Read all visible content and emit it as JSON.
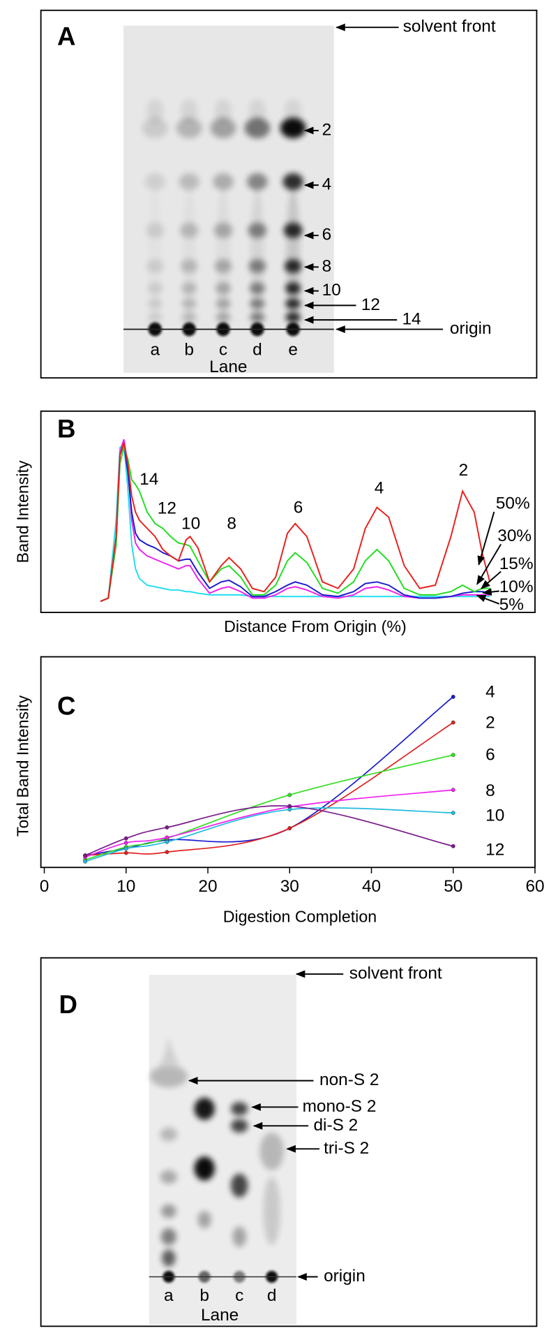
{
  "panel_a": {
    "label": "A",
    "lanes": [
      "a",
      "b",
      "c",
      "d",
      "e"
    ],
    "lane_axis": "Lane",
    "annotations": [
      "solvent front",
      "2",
      "4",
      "6",
      "8",
      "10",
      "12",
      "14",
      "origin"
    ]
  },
  "chart_data": [
    {
      "type": "line",
      "panel_label": "B",
      "xlabel": "Distance From Origin (%)",
      "ylabel": "Band Intensity",
      "peak_labels": [
        "14",
        "12",
        "10",
        "8",
        "6",
        "4",
        "2"
      ],
      "xlim": [
        0,
        100
      ],
      "ylim": [
        0,
        100
      ],
      "x": [
        0,
        2,
        4,
        5,
        6,
        7,
        8,
        9,
        10,
        12,
        14,
        16,
        18,
        20,
        22,
        23,
        25,
        28,
        31,
        33,
        36,
        39,
        42,
        45,
        48,
        50,
        53,
        57,
        61,
        65,
        68,
        71,
        74,
        78,
        82,
        86,
        90,
        93,
        96,
        98,
        100
      ],
      "series": [
        {
          "name": "50%",
          "color": "#e8201c",
          "values": [
            0,
            2,
            40,
            90,
            98,
            85,
            65,
            55,
            50,
            45,
            40,
            32,
            28,
            25,
            38,
            40,
            33,
            12,
            22,
            27,
            20,
            8,
            6,
            15,
            42,
            48,
            40,
            12,
            8,
            20,
            45,
            58,
            52,
            22,
            8,
            10,
            40,
            68,
            55,
            30,
            12
          ]
        },
        {
          "name": "30%",
          "color": "#22dd22",
          "values": [
            0,
            2,
            35,
            85,
            95,
            88,
            75,
            72,
            68,
            55,
            48,
            45,
            40,
            36,
            35,
            34,
            25,
            12,
            20,
            22,
            15,
            4,
            4,
            10,
            25,
            30,
            24,
            8,
            5,
            12,
            25,
            32,
            25,
            8,
            4,
            4,
            6,
            10,
            6,
            8,
            8
          ]
        },
        {
          "name": "15%",
          "color": "#1a1acc",
          "values": [
            0,
            2,
            35,
            90,
            97,
            80,
            55,
            42,
            38,
            35,
            33,
            30,
            28,
            25,
            26,
            26,
            18,
            8,
            12,
            13,
            9,
            3,
            3,
            6,
            10,
            12,
            10,
            4,
            3,
            6,
            11,
            12,
            10,
            4,
            2,
            2,
            3,
            5,
            6,
            6,
            5
          ]
        },
        {
          "name": "10%",
          "color": "#ee22ee",
          "values": [
            0,
            2,
            38,
            92,
            100,
            85,
            50,
            36,
            32,
            28,
            26,
            24,
            22,
            20,
            22,
            22,
            14,
            5,
            8,
            9,
            6,
            2,
            2,
            4,
            8,
            9,
            7,
            3,
            2,
            4,
            8,
            9,
            7,
            3,
            2,
            2,
            3,
            4,
            4,
            4,
            4
          ]
        },
        {
          "name": "5%",
          "color": "#22ddee",
          "values": [
            0,
            2,
            50,
            95,
            97,
            70,
            35,
            20,
            14,
            10,
            9,
            8,
            7,
            7,
            6,
            6,
            5,
            4,
            4,
            4,
            4,
            3,
            3,
            3,
            3,
            3,
            3,
            3,
            3,
            3,
            3,
            3,
            3,
            3,
            3,
            3,
            3,
            3,
            3,
            3,
            3
          ]
        }
      ]
    },
    {
      "type": "line",
      "panel_label": "C",
      "xlabel": "Digestion Completion",
      "ylabel": "Total Band Intensity",
      "xlim": [
        0,
        60
      ],
      "xticks": [
        0,
        10,
        20,
        30,
        40,
        50,
        60
      ],
      "ylim": [
        0,
        100
      ],
      "x": [
        5,
        10,
        15,
        30,
        50
      ],
      "series": [
        {
          "name": "4",
          "color": "#1a1acc",
          "values": [
            5.7,
            9,
            13,
            18.6,
            81
          ]
        },
        {
          "name": "2",
          "color": "#e0201f",
          "values": [
            5.7,
            6.9,
            7.3,
            18.6,
            68.8
          ]
        },
        {
          "name": "6",
          "color": "#33dd22",
          "values": [
            3.6,
            9.7,
            13.8,
            34.4,
            53.4
          ]
        },
        {
          "name": "8",
          "color": "#ee22ee",
          "values": [
            4.9,
            11.7,
            14.2,
            28.7,
            36.8
          ]
        },
        {
          "name": "10",
          "color": "#22bbdd",
          "values": [
            2.8,
            8.9,
            12.1,
            27.5,
            25.9
          ]
        },
        {
          "name": "12",
          "color": "#7a1a8a",
          "values": [
            5.7,
            13.8,
            19,
            29.1,
            10.1
          ]
        }
      ]
    }
  ],
  "panel_d": {
    "label": "D",
    "lanes": [
      "a",
      "b",
      "c",
      "d"
    ],
    "lane_axis": "Lane",
    "annotations": [
      "solvent front",
      "non-S 2",
      "mono-S 2",
      "di-S 2",
      "tri-S 2",
      "origin"
    ]
  }
}
